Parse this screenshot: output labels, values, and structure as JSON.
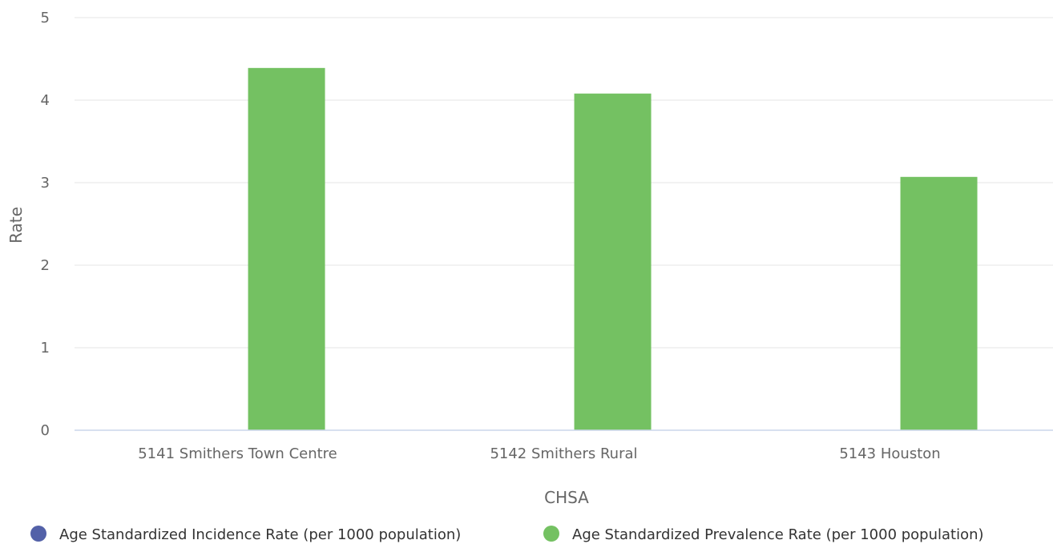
{
  "chart_data": {
    "type": "bar",
    "title": "",
    "xlabel": "CHSA",
    "ylabel": "Rate",
    "ylim": [
      0,
      5
    ],
    "yticks": [
      "0",
      "1",
      "2",
      "3",
      "4",
      "5"
    ],
    "categories": [
      "5141 Smithers Town Centre",
      "5142 Smithers Rural",
      "5143 Houston"
    ],
    "series": [
      {
        "name": "Age Standardized Incidence Rate (per 1000 population)",
        "color": "#5361a8",
        "values": [
          0,
          0,
          0
        ]
      },
      {
        "name": "Age Standardized Prevalence Rate (per 1000 population)",
        "color": "#74c162",
        "values": [
          4.39,
          4.08,
          3.07
        ]
      }
    ],
    "grid": true,
    "legend_position": "bottom"
  }
}
